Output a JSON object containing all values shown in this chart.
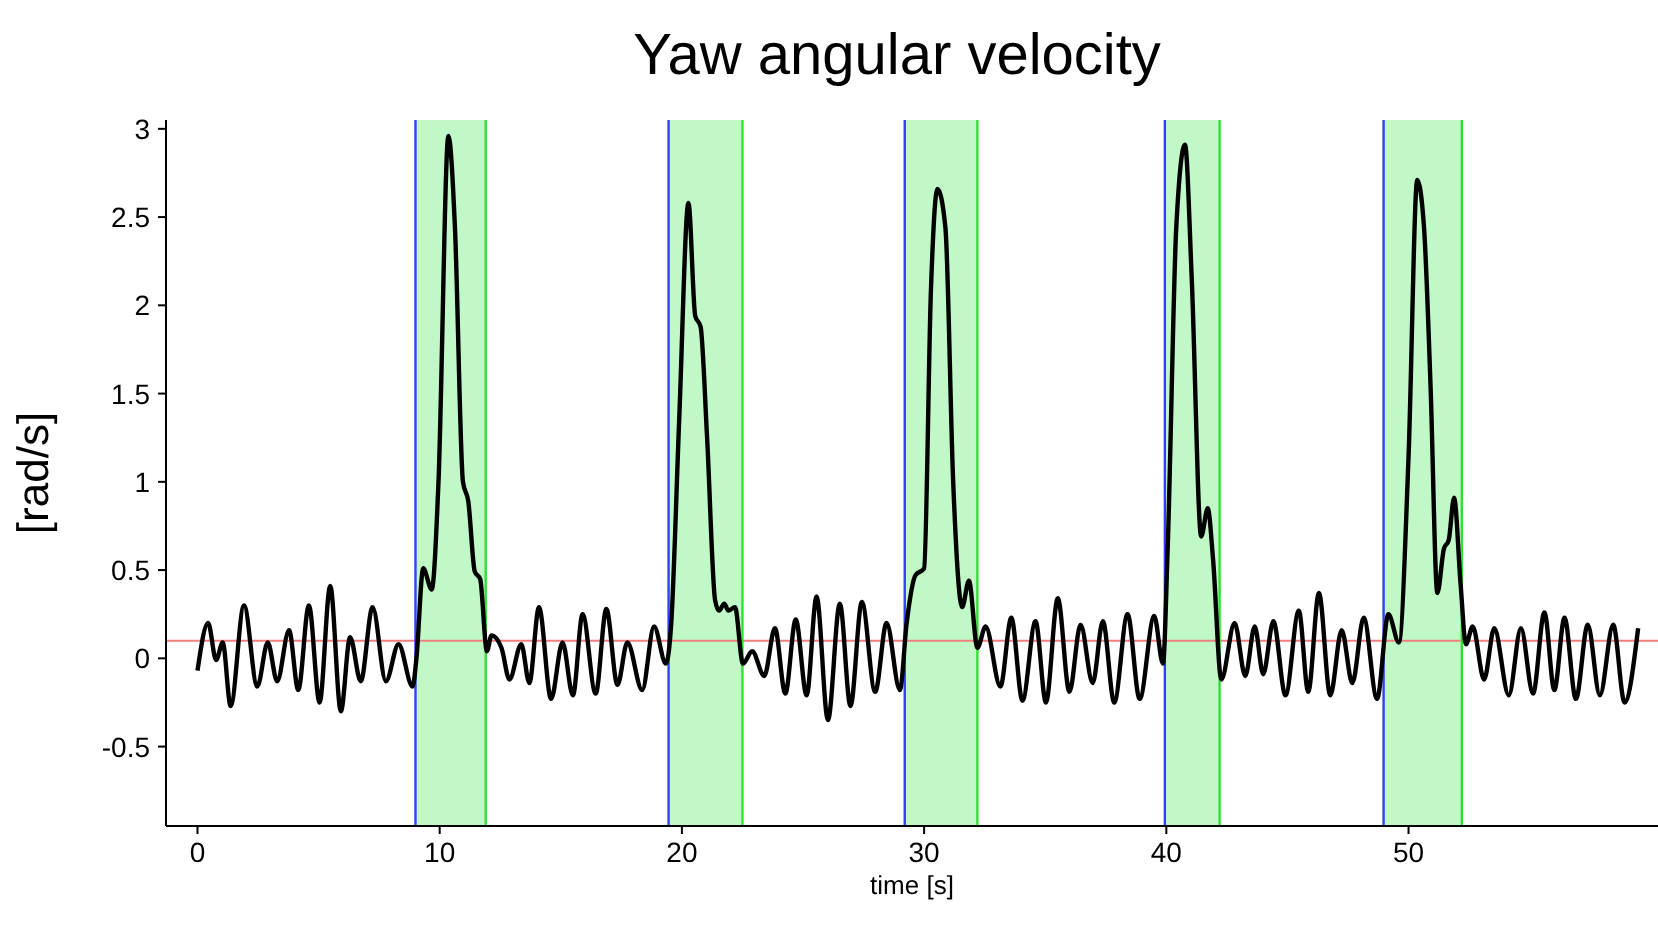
{
  "chart_data": {
    "type": "line",
    "title": "Yaw angular velocity",
    "xlabel": "time [s]",
    "ylabel": "[rad/s]",
    "x": [
      0,
      0.44,
      0.77,
      1.04,
      1.37,
      1.92,
      2.47,
      2.9,
      3.29,
      3.78,
      4.16,
      4.6,
      5.04,
      5.48,
      5.92,
      6.3,
      6.74,
      7.23,
      7.78,
      8.3,
      8.88,
      9.04,
      9.32,
      9.67,
      9.95,
      10.36,
      10.63,
      10.96,
      11.18,
      11.45,
      11.67,
      11.95,
      12.14,
      12.55,
      12.88,
      13.37,
      13.7,
      14.1,
      14.6,
      15.07,
      15.5,
      15.9,
      16.44,
      16.88,
      17.34,
      17.75,
      18.36,
      18.85,
      19.34,
      19.56,
      19.89,
      20.27,
      20.55,
      20.77,
      21.04,
      21.37,
      21.53,
      21.75,
      21.92,
      22.19,
      22.52,
      22.9,
      23.4,
      23.84,
      24.27,
      24.7,
      25.15,
      25.56,
      26.03,
      26.52,
      26.96,
      27.43,
      27.98,
      28.45,
      29.0,
      29.28,
      29.64,
      30.0,
      30.28,
      30.55,
      30.88,
      31.2,
      31.57,
      31.85,
      32.2,
      32.54,
      33.15,
      33.6,
      34.06,
      34.6,
      35.03,
      35.52,
      36.0,
      36.46,
      36.96,
      37.38,
      37.85,
      38.4,
      38.9,
      39.5,
      39.86,
      40.06,
      40.41,
      40.77,
      41.05,
      41.44,
      41.71,
      41.93,
      42.27,
      42.82,
      43.26,
      43.65,
      44.0,
      44.42,
      44.92,
      45.47,
      45.86,
      46.3,
      46.77,
      47.24,
      47.68,
      48.15,
      48.7,
      49.17,
      49.6,
      50.0,
      50.36,
      50.64,
      50.91,
      51.19,
      51.46,
      51.66,
      51.88,
      52.15,
      52.37,
      52.65,
      53.12,
      53.54,
      54.14,
      54.64,
      55.14,
      55.61,
      56.02,
      56.44,
      56.91,
      57.4,
      57.9,
      58.45,
      58.92,
      59.48
    ],
    "series": [
      {
        "color": "#000000",
        "values": [
          -0.07,
          0.2,
          -0.01,
          0.09,
          -0.27,
          0.3,
          -0.16,
          0.09,
          -0.13,
          0.16,
          -0.18,
          0.3,
          -0.25,
          0.41,
          -0.3,
          0.12,
          -0.13,
          0.29,
          -0.13,
          0.08,
          -0.16,
          0,
          0.51,
          0.39,
          1.0,
          2.96,
          2.44,
          1.0,
          0.89,
          0.49,
          0.45,
          0.04,
          0.13,
          0.06,
          -0.12,
          0.08,
          -0.14,
          0.29,
          -0.23,
          0.09,
          -0.21,
          0.25,
          -0.2,
          0.28,
          -0.15,
          0.09,
          -0.18,
          0.18,
          -0.03,
          0.2,
          1.36,
          2.58,
          1.94,
          1.88,
          1.25,
          0.33,
          0.27,
          0.31,
          0.27,
          0.29,
          -0.03,
          0.04,
          -0.1,
          0.17,
          -0.2,
          0.22,
          -0.21,
          0.35,
          -0.35,
          0.31,
          -0.27,
          0.32,
          -0.19,
          0.2,
          -0.18,
          0.2,
          0.47,
          0.51,
          2.08,
          2.66,
          2.44,
          1.0,
          0.29,
          0.44,
          0.06,
          0.18,
          -0.16,
          0.23,
          -0.24,
          0.21,
          -0.25,
          0.34,
          -0.19,
          0.19,
          -0.14,
          0.21,
          -0.25,
          0.25,
          -0.23,
          0.24,
          -0.03,
          0.64,
          2.44,
          2.91,
          2.15,
          0.69,
          0.85,
          0.56,
          -0.12,
          0.2,
          -0.1,
          0.18,
          -0.09,
          0.21,
          -0.21,
          0.27,
          -0.19,
          0.37,
          -0.21,
          0.16,
          -0.14,
          0.23,
          -0.23,
          0.25,
          0.09,
          1.14,
          2.71,
          2.44,
          1.54,
          0.37,
          0.62,
          0.67,
          0.91,
          0.42,
          0.08,
          0.18,
          -0.12,
          0.17,
          -0.21,
          0.17,
          -0.2,
          0.26,
          -0.18,
          0.23,
          -0.23,
          0.19,
          -0.21,
          0.19,
          -0.25,
          0.17
        ]
      }
    ],
    "xlim": [
      -1.3,
      60.3
    ],
    "xticks": [
      0,
      10,
      20,
      30,
      40,
      50
    ],
    "ylim": [
      -0.95,
      3.05
    ],
    "yticks": [
      -0.5,
      0,
      0.5,
      1,
      1.5,
      2,
      2.5,
      3
    ],
    "grid": false,
    "legend": false,
    "line_style": "solid",
    "marker": "none",
    "bands": [
      {
        "axis": "x",
        "from": 9.0,
        "to": 11.9,
        "color": "#c0f8c8"
      },
      {
        "axis": "x",
        "from": 19.45,
        "to": 22.5,
        "color": "#c0f8c8"
      },
      {
        "axis": "x",
        "from": 29.2,
        "to": 32.2,
        "color": "#c0f8c8"
      },
      {
        "axis": "x",
        "from": 39.94,
        "to": 42.2,
        "color": "#c0f8c8"
      },
      {
        "axis": "x",
        "from": 48.97,
        "to": 52.2,
        "color": "#c0f8c8"
      }
    ],
    "ref_lines": [
      {
        "axis": "y",
        "value": 0.1,
        "color": "#f08080"
      },
      {
        "axis": "x",
        "value": 9.0,
        "color": "#3040ff"
      },
      {
        "axis": "x",
        "value": 19.45,
        "color": "#3040ff"
      },
      {
        "axis": "x",
        "value": 29.2,
        "color": "#3040ff"
      },
      {
        "axis": "x",
        "value": 39.94,
        "color": "#3040ff"
      },
      {
        "axis": "x",
        "value": 48.97,
        "color": "#3040ff"
      },
      {
        "axis": "x",
        "value": 11.9,
        "color": "#30e030"
      },
      {
        "axis": "x",
        "value": 22.5,
        "color": "#30e030"
      },
      {
        "axis": "x",
        "value": 32.2,
        "color": "#30e030"
      },
      {
        "axis": "x",
        "value": 42.2,
        "color": "#30e030"
      },
      {
        "axis": "x",
        "value": 52.2,
        "color": "#30e030"
      }
    ]
  }
}
